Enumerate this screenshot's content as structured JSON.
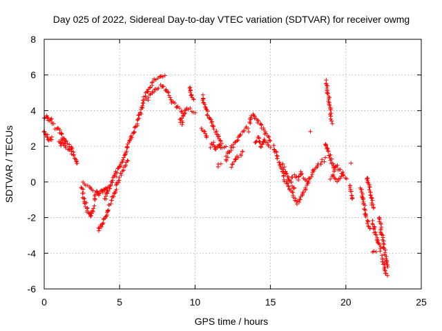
{
  "chart_data": {
    "type": "scatter",
    "title": "Day 025 of 2022, Sidereal Day-to-day VTEC variation (SDTVAR) for receiver owmg",
    "xlabel": "GPS time / hours",
    "ylabel": "SDTVAR / TECUs",
    "xlim": [
      0,
      25
    ],
    "ylim": [
      -6,
      8
    ],
    "xticks": [
      0,
      5,
      10,
      15,
      20,
      25
    ],
    "yticks": [
      -6,
      -4,
      -2,
      0,
      2,
      4,
      6,
      8
    ],
    "xtick_labels": [
      "0",
      "5",
      "10",
      "15",
      "20",
      "25"
    ],
    "ytick_labels": [
      "-6",
      "-4",
      "-2",
      "0",
      "2",
      "4",
      "6",
      "8"
    ],
    "grid": true,
    "marker": "plus",
    "color": "#ff0000",
    "series": [
      {
        "name": "SDTVAR",
        "segments": [
          {
            "x": [
              0.0,
              0.1,
              0.2,
              0.3,
              0.4,
              0.5,
              0.6
            ],
            "y": [
              3.6,
              3.7,
              3.6,
              3.5,
              3.5,
              3.4,
              3.3
            ]
          },
          {
            "x": [
              0.0,
              0.1,
              0.2,
              0.3,
              0.4,
              0.5
            ],
            "y": [
              2.9,
              2.7,
              2.6,
              2.4,
              2.3,
              2.5
            ]
          },
          {
            "x": [
              0.7,
              0.9,
              1.0,
              1.2,
              1.4,
              1.5,
              1.7,
              1.8,
              1.9,
              2.0,
              2.1,
              2.2
            ],
            "y": [
              3.0,
              3.0,
              2.9,
              2.6,
              2.4,
              2.2,
              2.0,
              1.8,
              1.6,
              1.4,
              1.2,
              1.0
            ]
          },
          {
            "x": [
              1.0,
              1.1,
              1.2,
              1.4,
              1.6,
              1.8
            ],
            "y": [
              2.3,
              2.1,
              2.4,
              2.0,
              1.8,
              1.9
            ]
          },
          {
            "x": [
              2.5,
              2.6,
              2.7,
              2.8,
              2.9,
              3.0,
              3.1,
              3.2,
              3.3
            ],
            "y": [
              -0.3,
              -0.8,
              -1.1,
              -1.4,
              -1.6,
              -1.8,
              -1.9,
              -1.7,
              -1.4
            ]
          },
          {
            "x": [
              2.6,
              2.8,
              3.0,
              3.2
            ],
            "y": [
              0.0,
              -0.1,
              -0.2,
              -0.4
            ]
          },
          {
            "x": [
              3.3,
              3.4,
              3.5,
              3.6,
              3.7,
              3.8,
              3.9,
              4.0,
              4.1,
              4.2
            ],
            "y": [
              -1.0,
              -0.8,
              -0.5,
              -0.7,
              -0.6,
              -0.5,
              -0.6,
              -0.4,
              -0.5,
              -0.3
            ]
          },
          {
            "x": [
              3.6,
              3.7,
              3.8,
              3.9,
              4.0,
              4.1,
              4.2,
              4.3
            ],
            "y": [
              -2.7,
              -2.6,
              -2.5,
              -2.3,
              -2.1,
              -2.0,
              -1.8,
              -1.6
            ]
          },
          {
            "x": [
              4.0,
              4.2,
              4.4,
              4.5,
              4.7,
              4.8,
              5.0,
              5.2,
              5.4,
              5.5,
              5.7,
              5.8,
              6.0
            ],
            "y": [
              -1.0,
              -0.6,
              -0.3,
              0.0,
              0.3,
              0.6,
              0.9,
              1.3,
              1.7,
              2.0,
              2.3,
              2.6,
              2.9
            ]
          },
          {
            "x": [
              4.3,
              4.5,
              4.7,
              4.9,
              5.1,
              5.3,
              5.5
            ],
            "y": [
              -1.3,
              -1.0,
              -0.5,
              0.0,
              0.4,
              0.8,
              1.2
            ]
          },
          {
            "x": [
              6.0,
              6.2,
              6.4,
              6.5,
              6.6,
              6.8,
              7.0,
              7.2,
              7.4,
              7.6,
              7.8,
              8.0
            ],
            "y": [
              3.0,
              3.4,
              3.9,
              4.3,
              4.6,
              5.0,
              5.3,
              5.6,
              5.8,
              5.9,
              6.0,
              5.9
            ]
          },
          {
            "x": [
              6.8,
              7.0,
              7.2,
              7.4,
              7.6,
              7.8,
              8.0,
              8.2,
              8.4
            ],
            "y": [
              4.6,
              4.8,
              5.0,
              5.2,
              5.3,
              5.4,
              5.2,
              5.0,
              4.7
            ]
          },
          {
            "x": [
              8.4,
              8.6,
              8.8,
              9.0,
              9.2,
              9.4,
              9.6,
              9.8,
              10.0
            ],
            "y": [
              4.5,
              4.4,
              4.2,
              4.1,
              3.9,
              4.0,
              4.1,
              4.0,
              3.9
            ]
          },
          {
            "x": [
              9.0,
              9.1,
              9.2,
              9.3
            ],
            "y": [
              3.5,
              3.3,
              3.6,
              3.8
            ]
          },
          {
            "x": [
              9.6,
              9.7,
              9.8,
              9.9
            ],
            "y": [
              5.3,
              5.0,
              4.8,
              4.6
            ]
          },
          {
            "x": [
              10.5,
              10.6,
              10.8,
              11.0,
              11.2,
              11.4,
              11.6,
              11.8
            ],
            "y": [
              4.8,
              4.4,
              3.9,
              3.5,
              3.1,
              2.8,
              2.5,
              2.2
            ]
          },
          {
            "x": [
              10.4,
              10.6,
              10.8
            ],
            "y": [
              3.0,
              2.8,
              2.5
            ]
          },
          {
            "x": [
              11.0,
              11.2,
              11.4,
              11.6,
              11.8,
              12.0
            ],
            "y": [
              2.0,
              2.2,
              1.8,
              2.1,
              1.9,
              2.0
            ]
          },
          {
            "x": [
              11.5,
              11.7
            ],
            "y": [
              0.9,
              1.0
            ]
          },
          {
            "x": [
              12.0,
              12.2,
              12.4,
              12.6,
              12.8,
              13.0,
              13.2,
              13.4,
              13.6
            ],
            "y": [
              1.2,
              1.6,
              1.9,
              2.1,
              2.4,
              2.6,
              2.8,
              3.0,
              2.9
            ]
          },
          {
            "x": [
              12.4,
              12.6,
              12.8,
              13.0,
              13.2
            ],
            "y": [
              0.9,
              1.1,
              1.4,
              1.5,
              1.7
            ]
          },
          {
            "x": [
              13.6,
              13.8,
              14.0,
              14.2,
              14.4,
              14.6,
              14.8,
              15.0
            ],
            "y": [
              3.3,
              3.8,
              3.6,
              3.4,
              3.1,
              2.8,
              2.6,
              2.3
            ]
          },
          {
            "x": [
              14.0,
              14.2,
              14.4,
              14.6,
              14.8,
              15.0
            ],
            "y": [
              2.2,
              2.5,
              2.0,
              2.4,
              2.1,
              2.0
            ]
          },
          {
            "x": [
              15.2,
              15.4,
              15.6,
              15.8,
              16.0,
              16.2,
              16.4,
              16.6,
              16.8
            ],
            "y": [
              2.0,
              1.5,
              1.0,
              0.6,
              0.0,
              -0.3,
              -0.6,
              -0.9,
              -1.1
            ]
          },
          {
            "x": [
              15.8,
              16.0,
              16.2,
              16.4,
              16.6
            ],
            "y": [
              1.0,
              0.6,
              0.2,
              -0.1,
              -0.4
            ]
          },
          {
            "x": [
              16.8,
              17.0,
              17.2,
              17.4,
              17.6,
              17.8,
              18.0,
              18.2,
              18.4,
              18.6
            ],
            "y": [
              -1.2,
              -1.0,
              -0.6,
              -0.2,
              0.2,
              0.5,
              0.8,
              1.0,
              1.1,
              1.3
            ]
          },
          {
            "x": [
              16.4,
              16.6,
              16.8,
              17.0,
              17.2,
              17.4
            ],
            "y": [
              0.3,
              0.4,
              0.2,
              0.5,
              0.3,
              0.1
            ]
          },
          {
            "x": [
              17.6
            ],
            "y": [
              2.85
            ]
          },
          {
            "x": [
              18.6,
              18.7,
              18.8,
              18.9,
              19.0,
              19.1,
              19.2
            ],
            "y": [
              2.2,
              2.0,
              1.8,
              1.5,
              1.3,
              1.0,
              0.8
            ]
          },
          {
            "x": [
              18.7,
              18.75,
              18.8,
              18.85,
              18.9,
              18.95,
              19.0,
              19.1
            ],
            "y": [
              5.7,
              5.3,
              5.0,
              4.8,
              4.3,
              4.1,
              3.6,
              3.3
            ]
          },
          {
            "x": [
              19.2,
              19.4,
              19.6,
              19.8,
              20.0
            ],
            "y": [
              0.6,
              0.9,
              0.7,
              0.4,
              0.2
            ]
          },
          {
            "x": [
              19.0,
              19.2,
              19.4,
              19.6,
              19.8
            ],
            "y": [
              0.2,
              0.4,
              0.1,
              0.3,
              0.5
            ]
          },
          {
            "x": [
              20.3
            ],
            "y": [
              1.0
            ]
          },
          {
            "x": [
              20.3,
              20.35,
              20.4
            ],
            "y": [
              -0.2,
              -0.6,
              -1.0
            ]
          },
          {
            "x": [
              21.0,
              21.1,
              21.2,
              21.3,
              21.4,
              21.5,
              21.6
            ],
            "y": [
              -0.3,
              -0.8,
              -1.3,
              -1.8,
              -2.1,
              -2.4,
              -2.6
            ]
          },
          {
            "x": [
              21.4,
              21.5,
              21.6,
              21.7,
              21.8
            ],
            "y": [
              0.3,
              0.0,
              -0.5,
              -1.0,
              -1.5
            ]
          },
          {
            "x": [
              21.8,
              21.9,
              22.0,
              22.1,
              22.2,
              22.3
            ],
            "y": [
              -2.2,
              -2.6,
              -3.0,
              -3.2,
              -3.5,
              -3.8
            ]
          },
          {
            "x": [
              21.8,
              22.0
            ],
            "y": [
              -3.9,
              -4.0
            ]
          },
          {
            "x": [
              22.2,
              22.3,
              22.4,
              22.5,
              22.6,
              22.7,
              22.8
            ],
            "y": [
              -2.0,
              -2.5,
              -3.0,
              -3.5,
              -4.0,
              -4.5,
              -4.8
            ]
          },
          {
            "x": [
              22.4,
              22.5,
              22.6,
              22.7
            ],
            "y": [
              -4.2,
              -4.6,
              -5.0,
              -5.2
            ]
          }
        ]
      }
    ]
  }
}
